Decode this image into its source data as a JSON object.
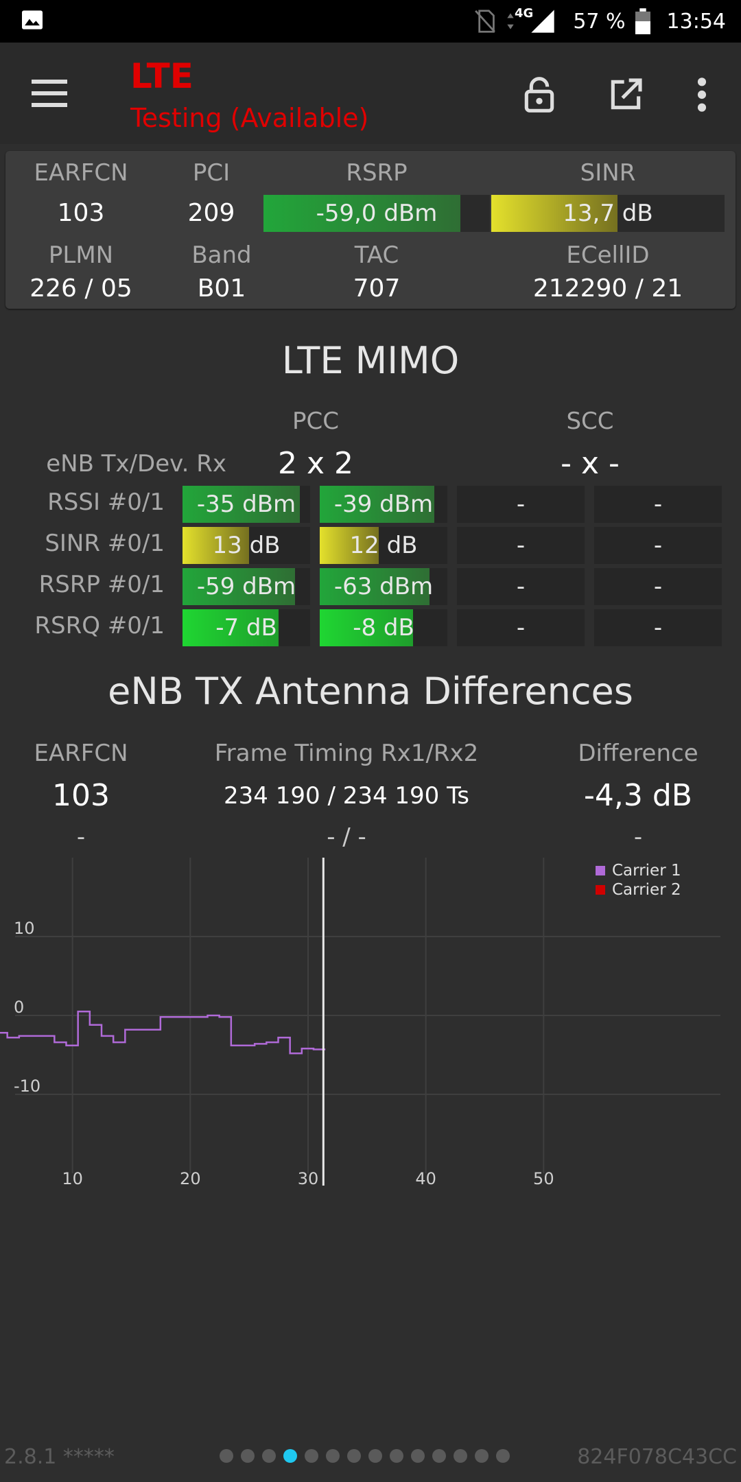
{
  "status_bar": {
    "network": "4G",
    "battery": "57 %",
    "time": "13:54"
  },
  "app_bar": {
    "title": "LTE",
    "subtitle": "Testing (Available)",
    "icons": [
      "menu-icon",
      "lock-icon",
      "open-external-icon",
      "more-vert-icon"
    ]
  },
  "cell_info": {
    "headers": {
      "earfcn": "EARFCN",
      "pci": "PCI",
      "rsrp": "RSRP",
      "sinr": "SINR",
      "plmn": "PLMN",
      "band": "Band",
      "tac": "TAC",
      "ecellid": "ECellID"
    },
    "earfcn": "103",
    "pci": "209",
    "rsrp": "-59,0 dBm",
    "rsrp_level": 0.87,
    "sinr": "13,7 dB",
    "sinr_level": 0.54,
    "plmn": "226 / 05",
    "band": "B01",
    "tac": "707",
    "ecellid": "212290 / 21"
  },
  "mimo": {
    "title": "LTE MIMO",
    "pcc_label": "PCC",
    "scc_label": "SCC",
    "tx_rx_label": "eNB Tx/Dev. Rx",
    "pcc_value": "2 x 2",
    "scc_value": "- x -",
    "rows": [
      {
        "label": "RSSI #0/1",
        "pcc0": "-35 dBm",
        "pcc0_level": 0.92,
        "pcc1": "-39 dBm",
        "pcc1_level": 0.9,
        "scc0": "-",
        "scc1": "-"
      },
      {
        "label": "SINR #0/1",
        "pcc0": "13 dB",
        "pcc0_level": 0.52,
        "pcc1": "12 dB",
        "pcc1_level": 0.46,
        "scc0": "-",
        "scc1": "-"
      },
      {
        "label": "RSRP #0/1",
        "pcc0": "-59 dBm",
        "pcc0_level": 0.88,
        "pcc1": "-63 dBm",
        "pcc1_level": 0.86,
        "scc0": "-",
        "scc1": "-"
      },
      {
        "label": "RSRQ #0/1",
        "pcc0": "-7 dB",
        "pcc0_level": 0.75,
        "pcc1": "-8 dB",
        "pcc1_level": 0.73,
        "scc0": "-",
        "scc1": "-"
      }
    ]
  },
  "antenna": {
    "title": "eNB TX Antenna Differences",
    "headers": {
      "earfcn": "EARFCN",
      "timing": "Frame Timing Rx1/Rx2",
      "difference": "Difference"
    },
    "row1": {
      "earfcn": "103",
      "timing": "234 190 / 234 190 Ts",
      "difference": "-4,3 dB"
    },
    "row2": {
      "earfcn": "-",
      "timing": "- / -",
      "difference": "-"
    }
  },
  "chart_data": {
    "type": "line",
    "xlim": [
      0,
      60
    ],
    "ylim": [
      -20,
      20
    ],
    "x_ticks": [
      10,
      20,
      30,
      40,
      50
    ],
    "y_ticks": [
      10,
      0,
      -10
    ],
    "legend": [
      "Carrier 1",
      "Carrier 2"
    ],
    "legend_position": "top-right",
    "cursor_x": 31.3,
    "grid": true,
    "series": [
      {
        "name": "Carrier 1",
        "color": "#b06ad8",
        "x": [
          0,
          1,
          2,
          3,
          4,
          5,
          6,
          7,
          8,
          9,
          10,
          11,
          12,
          13,
          14,
          15,
          16,
          17,
          18,
          19,
          20,
          21,
          22,
          23,
          24,
          25,
          26,
          27,
          28,
          29,
          30,
          31
        ],
        "y": [
          -2.8,
          -2.8,
          -2.2,
          -2.2,
          -2.8,
          -2.6,
          -2.6,
          -2.6,
          -3.4,
          -3.8,
          0.5,
          -1.2,
          -2.6,
          -3.4,
          -1.8,
          -1.8,
          -1.8,
          -0.2,
          -0.2,
          -0.2,
          -0.2,
          0,
          -0.2,
          -3.8,
          -3.8,
          -3.6,
          -3.4,
          -2.8,
          -4.8,
          -4.2,
          -4.3,
          -4.3
        ]
      },
      {
        "name": "Carrier 2",
        "color": "#d00000",
        "x": [],
        "y": []
      }
    ]
  },
  "footer": {
    "version": "2.8.1 *****",
    "device_id": "824F078C43CC",
    "page_count": 14,
    "active_page": 3
  }
}
